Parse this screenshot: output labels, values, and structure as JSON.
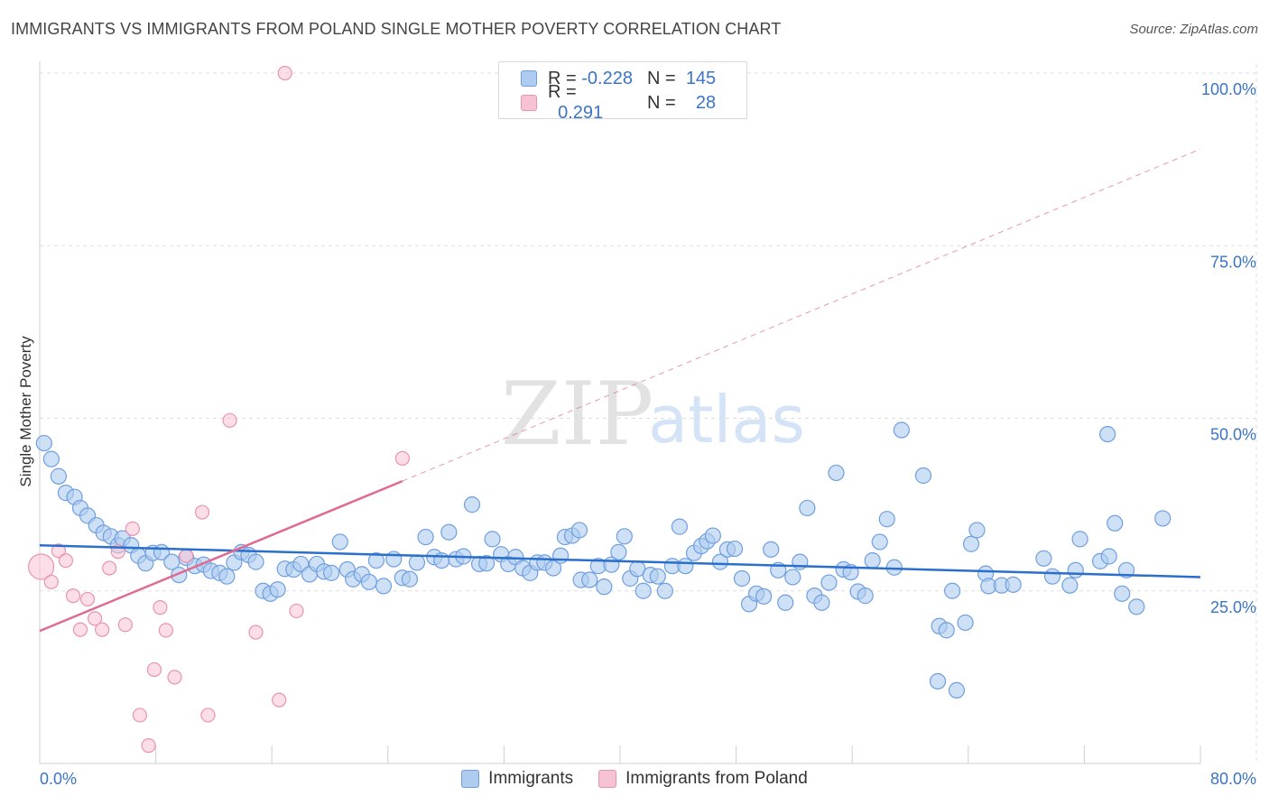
{
  "header": {
    "title": "IMMIGRANTS VS IMMIGRANTS FROM POLAND SINGLE MOTHER POVERTY CORRELATION CHART",
    "source": "Source: ZipAtlas.com"
  },
  "legend_box": {
    "rows": [
      {
        "r_label": "R =",
        "r_value": "-0.228",
        "n_label": "N =",
        "n_value": "145"
      },
      {
        "r_label": "R =",
        "r_value": "0.291",
        "n_label": "N =",
        "n_value": "28"
      }
    ]
  },
  "watermark": {
    "zip": "ZIP",
    "atlas": "atlas"
  },
  "colors": {
    "immigrants_fill": "#aecbf0",
    "immigrants_stroke": "#6f9fde",
    "immigrants_line": "#2a6fcc",
    "poland_fill": "#f7c3d4",
    "poland_stroke": "#ea93b0",
    "poland_line": "#e06a92",
    "axis_label": "#3a74c4",
    "grid": "#dddddd"
  },
  "chart_data": {
    "type": "scatter",
    "title": "IMMIGRANTS VS IMMIGRANTS FROM POLAND SINGLE MOTHER POVERTY CORRELATION CHART",
    "xlabel": "",
    "ylabel": "Single Mother Poverty",
    "xlim": [
      0,
      80
    ],
    "ylim": [
      0,
      100
    ],
    "x_tick_labels": [
      "0.0%",
      "80.0%"
    ],
    "y_tick_values": [
      25,
      50,
      75,
      100
    ],
    "y_tick_labels": [
      "25.0%",
      "50.0%",
      "75.0%",
      "100.0%"
    ],
    "grid": true,
    "legend_position": "bottom",
    "series": [
      {
        "name": "Immigrants",
        "r": -0.228,
        "n": 145,
        "trend": {
          "x": [
            0,
            80
          ],
          "y": [
            31.6,
            27.0
          ]
        },
        "points": [
          [
            0.3,
            46.4
          ],
          [
            0.8,
            44.1
          ],
          [
            1.3,
            41.6
          ],
          [
            1.8,
            39.2
          ],
          [
            2.4,
            38.6
          ],
          [
            2.8,
            37
          ],
          [
            3.3,
            35.9
          ],
          [
            3.9,
            34.5
          ],
          [
            4.4,
            33.4
          ],
          [
            4.9,
            32.9
          ],
          [
            5.4,
            31.6
          ],
          [
            5.7,
            32.6
          ],
          [
            6.3,
            31.6
          ],
          [
            6.8,
            30.1
          ],
          [
            7.3,
            29
          ],
          [
            7.8,
            30.5
          ],
          [
            8.4,
            30.6
          ],
          [
            9.1,
            29.2
          ],
          [
            9.6,
            27.3
          ],
          [
            10.1,
            29.8
          ],
          [
            10.7,
            28.6
          ],
          [
            11.3,
            28.8
          ],
          [
            11.8,
            27.9
          ],
          [
            12.4,
            27.6
          ],
          [
            12.9,
            27.1
          ],
          [
            13.4,
            29.1
          ],
          [
            13.9,
            30.6
          ],
          [
            14.4,
            30.2
          ],
          [
            14.9,
            29.2
          ],
          [
            15.4,
            25
          ],
          [
            15.9,
            24.6
          ],
          [
            16.4,
            25.2
          ],
          [
            16.9,
            28.2
          ],
          [
            17.5,
            28.1
          ],
          [
            18,
            28.9
          ],
          [
            18.6,
            27.4
          ],
          [
            19.1,
            28.9
          ],
          [
            19.6,
            27.8
          ],
          [
            20.1,
            27.6
          ],
          [
            20.7,
            32.1
          ],
          [
            21.2,
            28.1
          ],
          [
            21.6,
            26.7
          ],
          [
            22.2,
            27.4
          ],
          [
            22.7,
            26.3
          ],
          [
            23.2,
            29.4
          ],
          [
            23.7,
            25.7
          ],
          [
            24.4,
            29.6
          ],
          [
            25,
            26.9
          ],
          [
            25.5,
            26.7
          ],
          [
            26,
            29.1
          ],
          [
            26.6,
            32.8
          ],
          [
            27.2,
            29.9
          ],
          [
            27.7,
            29.4
          ],
          [
            28.2,
            33.5
          ],
          [
            28.7,
            29.6
          ],
          [
            29.2,
            30
          ],
          [
            29.8,
            37.5
          ],
          [
            30.3,
            28.9
          ],
          [
            30.8,
            29
          ],
          [
            31.2,
            32.5
          ],
          [
            31.8,
            30.3
          ],
          [
            32.3,
            28.9
          ],
          [
            32.8,
            29.9
          ],
          [
            33.3,
            28.3
          ],
          [
            33.8,
            27.6
          ],
          [
            34.3,
            29.1
          ],
          [
            34.8,
            29.1
          ],
          [
            35.4,
            28.3
          ],
          [
            35.9,
            30.1
          ],
          [
            36.2,
            32.8
          ],
          [
            36.7,
            33
          ],
          [
            37.2,
            33.8
          ],
          [
            37.3,
            26.6
          ],
          [
            37.9,
            26.6
          ],
          [
            38.5,
            28.6
          ],
          [
            38.9,
            25.6
          ],
          [
            39.4,
            28.8
          ],
          [
            39.9,
            30.6
          ],
          [
            40.3,
            32.9
          ],
          [
            40.7,
            26.8
          ],
          [
            41.2,
            28.2
          ],
          [
            41.6,
            25
          ],
          [
            42.1,
            27.3
          ],
          [
            42.6,
            27.1
          ],
          [
            43.1,
            25
          ],
          [
            43.6,
            28.6
          ],
          [
            44.1,
            34.3
          ],
          [
            44.5,
            28.6
          ],
          [
            45.1,
            30.5
          ],
          [
            45.6,
            31.5
          ],
          [
            46,
            32.2
          ],
          [
            46.4,
            33
          ],
          [
            46.9,
            29.2
          ],
          [
            47.4,
            31
          ],
          [
            47.9,
            31.1
          ],
          [
            48.4,
            26.8
          ],
          [
            48.9,
            23.1
          ],
          [
            49.4,
            24.6
          ],
          [
            49.9,
            24.2
          ],
          [
            50.4,
            31
          ],
          [
            50.9,
            28
          ],
          [
            51.4,
            23.3
          ],
          [
            51.9,
            27
          ],
          [
            52.4,
            29.2
          ],
          [
            52.9,
            37
          ],
          [
            53.4,
            24.3
          ],
          [
            53.9,
            23.3
          ],
          [
            54.4,
            26.2
          ],
          [
            54.9,
            42.1
          ],
          [
            55.4,
            28.1
          ],
          [
            55.9,
            27.7
          ],
          [
            56.4,
            24.9
          ],
          [
            56.9,
            24.3
          ],
          [
            57.4,
            29.4
          ],
          [
            57.9,
            32.1
          ],
          [
            58.4,
            35.4
          ],
          [
            58.9,
            28.4
          ],
          [
            59.4,
            48.3
          ],
          [
            60.9,
            41.7
          ],
          [
            62,
            19.9
          ],
          [
            62.5,
            19.3
          ],
          [
            62.9,
            25
          ],
          [
            63.2,
            10.6
          ],
          [
            63.8,
            20.4
          ],
          [
            64.2,
            31.8
          ],
          [
            64.6,
            33.8
          ],
          [
            65.2,
            27.5
          ],
          [
            65.4,
            25.7
          ],
          [
            66.3,
            25.8
          ],
          [
            67.1,
            25.9
          ],
          [
            69.2,
            29.7
          ],
          [
            69.8,
            27.1
          ],
          [
            71,
            25.8
          ],
          [
            71.4,
            28
          ],
          [
            71.7,
            32.5
          ],
          [
            73.1,
            29.3
          ],
          [
            73.7,
            30
          ],
          [
            74.1,
            34.8
          ],
          [
            74.6,
            24.6
          ],
          [
            74.9,
            28
          ],
          [
            75.6,
            22.7
          ],
          [
            77.4,
            35.5
          ],
          [
            61.9,
            11.9
          ],
          [
            73.6,
            47.7
          ]
        ]
      },
      {
        "name": "Immigrants from Poland",
        "r": 0.291,
        "n": 28,
        "trend": {
          "x": [
            0,
            25
          ],
          "y": [
            19.2,
            40.9
          ]
        },
        "trend_extension": {
          "x": [
            25,
            80
          ],
          "y": [
            40.9,
            89.0
          ]
        },
        "points": [
          [
            0.1,
            28.5
          ],
          [
            0.8,
            26.3
          ],
          [
            1.3,
            30.8
          ],
          [
            1.8,
            29.4
          ],
          [
            2.3,
            24.3
          ],
          [
            2.8,
            19.4
          ],
          [
            3.3,
            23.8
          ],
          [
            3.8,
            21
          ],
          [
            4.3,
            19.4
          ],
          [
            4.8,
            28.3
          ],
          [
            5.4,
            30.7
          ],
          [
            5.9,
            20.1
          ],
          [
            6.4,
            34
          ],
          [
            6.9,
            7
          ],
          [
            7.5,
            2.6
          ],
          [
            7.9,
            13.6
          ],
          [
            8.3,
            22.6
          ],
          [
            8.7,
            19.3
          ],
          [
            9.3,
            12.5
          ],
          [
            10.1,
            30.1
          ],
          [
            11.2,
            36.4
          ],
          [
            11.6,
            7
          ],
          [
            13.1,
            49.7
          ],
          [
            14.9,
            19
          ],
          [
            16.5,
            9.2
          ],
          [
            16.9,
            100
          ],
          [
            17.7,
            22.1
          ],
          [
            25,
            44.2
          ]
        ]
      }
    ]
  },
  "bottom_legend": {
    "items": [
      "Immigrants",
      "Immigrants from Poland"
    ]
  }
}
